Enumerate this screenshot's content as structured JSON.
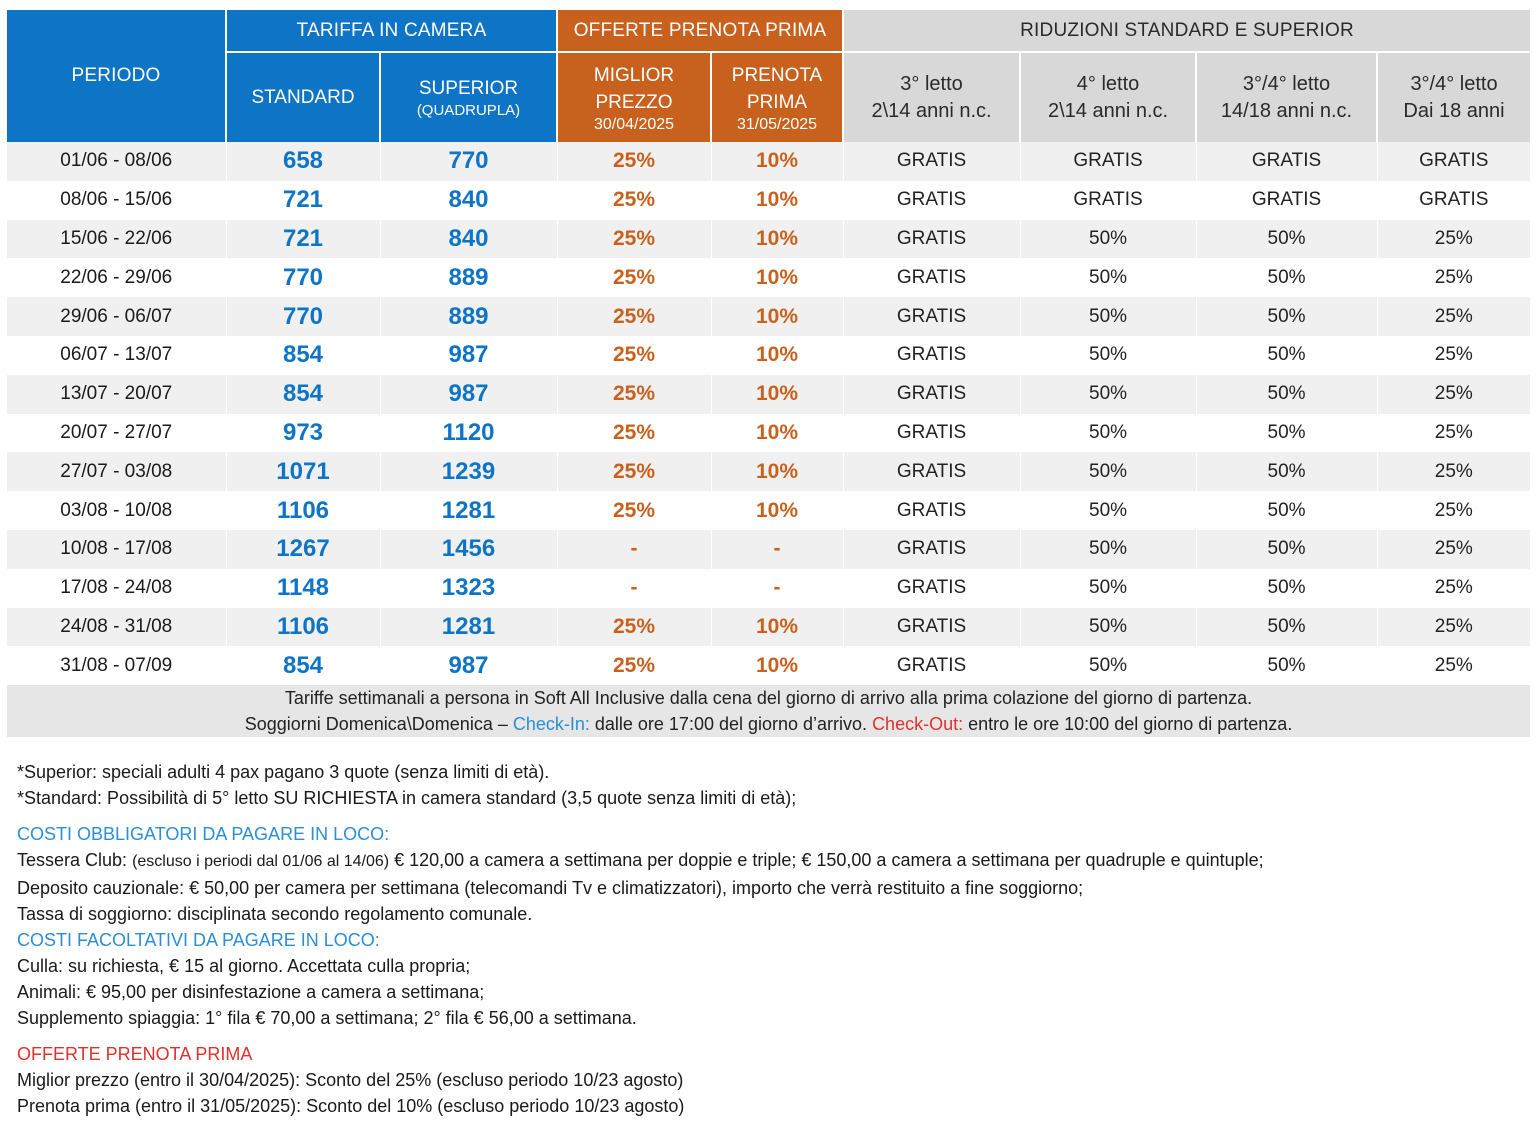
{
  "header": {
    "periodo": "PERIODO",
    "tariffa": "TARIFFA IN CAMERA",
    "offerte": "OFFERTE PRENOTA PRIMA",
    "riduzioni": "RIDUZIONI STANDARD E SUPERIOR",
    "standard": "STANDARD",
    "superior": "SUPERIOR",
    "superior_sub": "(QUADRUPLA)",
    "miglior_1": "MIGLIOR",
    "miglior_2": "PREZZO",
    "miglior_date": "30/04/2025",
    "prenota_1": "PRENOTA",
    "prenota_2": "PRIMA",
    "prenota_date": "31/05/2025",
    "r1_a": "3° letto",
    "r1_b": "2\\14 anni n.c.",
    "r2_a": "4° letto",
    "r2_b": "2\\14 anni n.c.",
    "r3_a": "3°/4° letto",
    "r3_b": "14/18 anni n.c.",
    "r4_a": "3°/4° letto",
    "r4_b": "Dai 18 anni"
  },
  "rows": [
    {
      "periodo": "01/06 - 08/06",
      "standard": "658",
      "superior": "770",
      "miglior": "25%",
      "prenota": "10%",
      "r1": "GRATIS",
      "r2": "GRATIS",
      "r3": "GRATIS",
      "r4": "GRATIS"
    },
    {
      "periodo": "08/06 - 15/06",
      "standard": "721",
      "superior": "840",
      "miglior": "25%",
      "prenota": "10%",
      "r1": "GRATIS",
      "r2": "GRATIS",
      "r3": "GRATIS",
      "r4": "GRATIS"
    },
    {
      "periodo": "15/06 - 22/06",
      "standard": "721",
      "superior": "840",
      "miglior": "25%",
      "prenota": "10%",
      "r1": "GRATIS",
      "r2": "50%",
      "r3": "50%",
      "r4": "25%"
    },
    {
      "periodo": "22/06 - 29/06",
      "standard": "770",
      "superior": "889",
      "miglior": "25%",
      "prenota": "10%",
      "r1": "GRATIS",
      "r2": "50%",
      "r3": "50%",
      "r4": "25%"
    },
    {
      "periodo": "29/06 - 06/07",
      "standard": "770",
      "superior": "889",
      "miglior": "25%",
      "prenota": "10%",
      "r1": "GRATIS",
      "r2": "50%",
      "r3": "50%",
      "r4": "25%"
    },
    {
      "periodo": "06/07 - 13/07",
      "standard": "854",
      "superior": "987",
      "miglior": "25%",
      "prenota": "10%",
      "r1": "GRATIS",
      "r2": "50%",
      "r3": "50%",
      "r4": "25%"
    },
    {
      "periodo": "13/07 - 20/07",
      "standard": "854",
      "superior": "987",
      "miglior": "25%",
      "prenota": "10%",
      "r1": "GRATIS",
      "r2": "50%",
      "r3": "50%",
      "r4": "25%"
    },
    {
      "periodo": "20/07 - 27/07",
      "standard": "973",
      "superior": "1120",
      "miglior": "25%",
      "prenota": "10%",
      "r1": "GRATIS",
      "r2": "50%",
      "r3": "50%",
      "r4": "25%"
    },
    {
      "periodo": "27/07 - 03/08",
      "standard": "1071",
      "superior": "1239",
      "miglior": "25%",
      "prenota": "10%",
      "r1": "GRATIS",
      "r2": "50%",
      "r3": "50%",
      "r4": "25%"
    },
    {
      "periodo": "03/08 - 10/08",
      "standard": "1106",
      "superior": "1281",
      "miglior": "25%",
      "prenota": "10%",
      "r1": "GRATIS",
      "r2": "50%",
      "r3": "50%",
      "r4": "25%"
    },
    {
      "periodo": "10/08 - 17/08",
      "standard": "1267",
      "superior": "1456",
      "miglior": "-",
      "prenota": "-",
      "r1": "GRATIS",
      "r2": "50%",
      "r3": "50%",
      "r4": "25%"
    },
    {
      "periodo": "17/08 - 24/08",
      "standard": "1148",
      "superior": "1323",
      "miglior": "-",
      "prenota": "-",
      "r1": "GRATIS",
      "r2": "50%",
      "r3": "50%",
      "r4": "25%"
    },
    {
      "periodo": "24/08 - 31/08",
      "standard": "1106",
      "superior": "1281",
      "miglior": "25%",
      "prenota": "10%",
      "r1": "GRATIS",
      "r2": "50%",
      "r3": "50%",
      "r4": "25%"
    },
    {
      "periodo": "31/08 - 07/09",
      "standard": "854",
      "superior": "987",
      "miglior": "25%",
      "prenota": "10%",
      "r1": "GRATIS",
      "r2": "50%",
      "r3": "50%",
      "r4": "25%"
    }
  ],
  "table_note": {
    "line1": "Tariffe settimanali a persona in Soft All Inclusive dalla cena del giorno di arrivo alla prima colazione del giorno di partenza.",
    "line2_a": "Soggiorni Domenica\\Domenica – ",
    "checkin_label": "Check-In:",
    "checkin_text": " dalle ore 17:00 del giorno d’arrivo. ",
    "checkout_label": "Check-Out:",
    "checkout_text": " entro le ore 10:00 del giorno di partenza."
  },
  "notes": {
    "superior": "*Superior: speciali adulti 4 pax pagano 3 quote (senza limiti di età).",
    "standard": "*Standard: Possibilità di 5° letto SU RICHIESTA in camera standard (3,5 quote senza limiti di età);",
    "obbligatori_title": "COSTI OBBLIGATORI DA PAGARE IN LOCO:",
    "tessera_a": "Tessera Club: ",
    "tessera_small": "(escluso i periodi dal 01/06 al 14/06)",
    "tessera_b": " € 120,00 a camera a settimana per doppie e triple; € 150,00 a camera a settimana per quadruple e quintuple;",
    "deposito": "Deposito cauzionale: € 50,00 per camera per settimana (telecomandi Tv e climatizzatori), importo che verrà restituito a fine soggiorno;",
    "tassa": "Tassa di soggiorno: disciplinata secondo regolamento comunale.",
    "facoltativi_title": "COSTI FACOLTATIVI DA PAGARE IN LOCO:",
    "culla": "Culla: su richiesta, € 15 al giorno. Accettata culla propria;",
    "animali": "Animali: € 95,00 per disinfestazione a camera a settimana;",
    "spiaggia": "Supplemento spiaggia: 1° fila € 70,00 a settimana; 2° fila € 56,00 a settimana.",
    "offerte_title": "OFFERTE PRENOTA PRIMA",
    "miglior": "Miglior prezzo (entro il 30/04/2025): Sconto del 25% (escluso periodo 10/23 agosto)",
    "prenota": "Prenota prima (entro il 31/05/2025): Sconto del 10% (escluso periodo 10/23 agosto)"
  },
  "colors": {
    "blue": "#0e74c6",
    "orange": "#c8611d",
    "grey_header": "#d8d8d8",
    "link_blue": "#2b8fd6",
    "red": "#e0312c"
  }
}
